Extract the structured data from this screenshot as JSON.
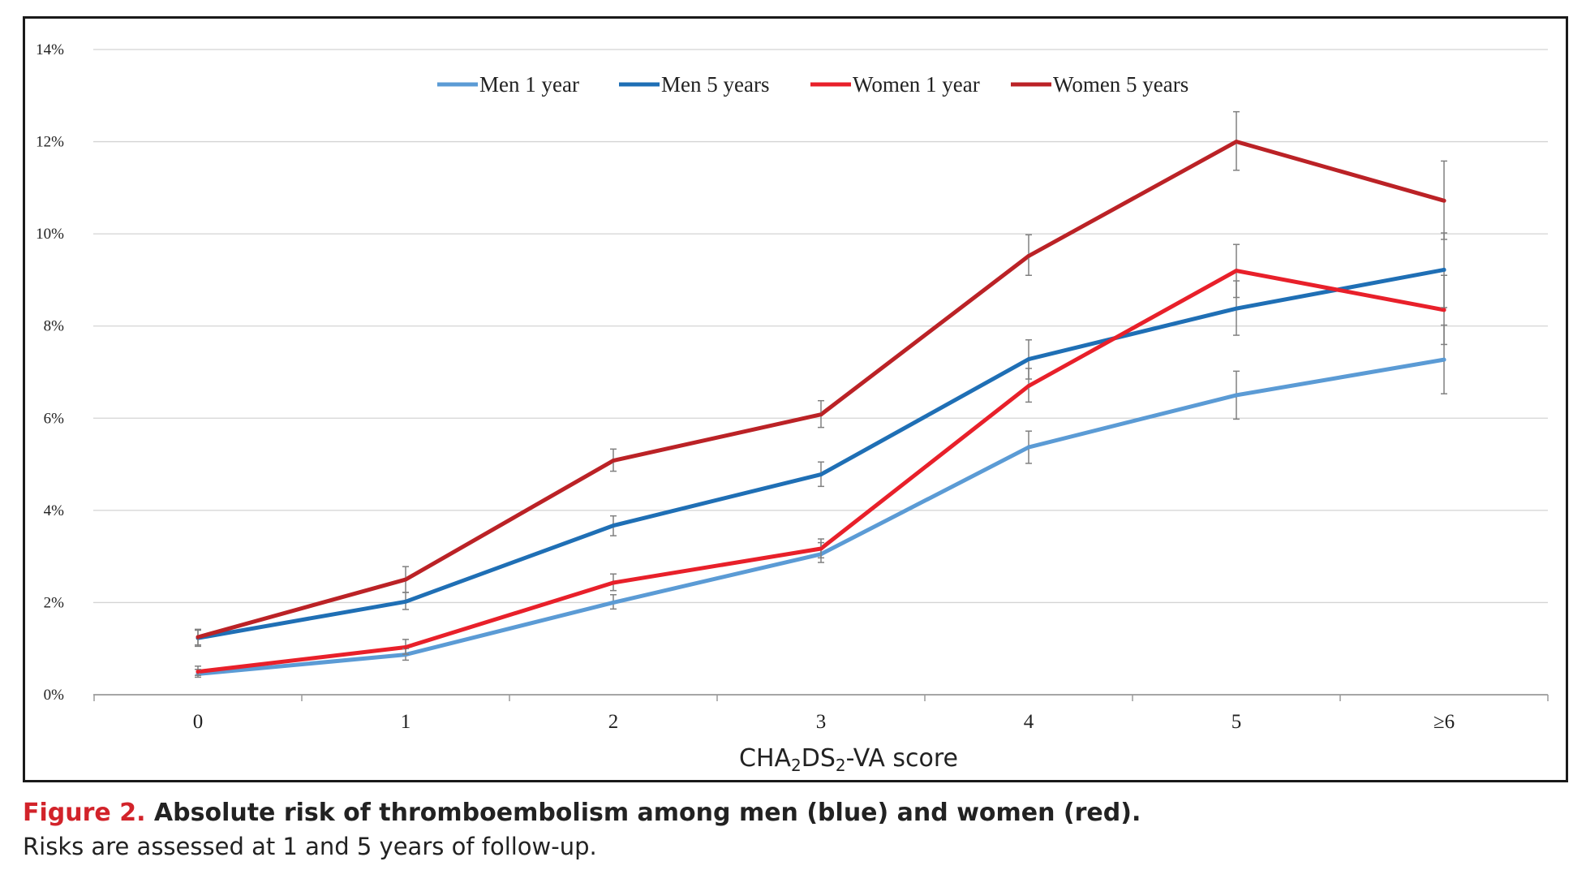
{
  "chart_data": {
    "type": "line",
    "xlabel": {
      "prefix": "CHA",
      "sub1": "2",
      "mid": "DS",
      "sub2": "2",
      "suffix": "-VA score"
    },
    "categories": [
      "0",
      "1",
      "2",
      "3",
      "4",
      "5",
      "≥6"
    ],
    "y_ticks": [
      "0%",
      "2%",
      "4%",
      "6%",
      "8%",
      "10%",
      "12%",
      "14%"
    ],
    "ylim": [
      0,
      14
    ],
    "y_unit": "%",
    "grid": "horizontal",
    "legend_position": "top-center",
    "series": [
      {
        "name": "Men 1 year",
        "color": "#5b9bd5",
        "values": [
          0.45,
          0.87,
          2.0,
          3.05,
          5.37,
          6.5,
          7.27
        ],
        "ci_low": [
          0.38,
          0.75,
          1.86,
          2.87,
          5.02,
          5.98,
          6.53
        ],
        "ci_high": [
          0.55,
          1.0,
          2.17,
          3.3,
          5.72,
          7.02,
          8.02
        ]
      },
      {
        "name": "Men 5 years",
        "color": "#1f6fb5",
        "values": [
          1.23,
          2.02,
          3.67,
          4.78,
          7.28,
          8.38,
          9.22
        ],
        "ci_low": [
          1.05,
          1.85,
          3.45,
          4.52,
          6.85,
          7.8,
          8.4
        ],
        "ci_high": [
          1.4,
          2.22,
          3.88,
          5.05,
          7.7,
          8.98,
          10.02
        ]
      },
      {
        "name": "Women 1 year",
        "color": "#e8202a",
        "values": [
          0.5,
          1.03,
          2.43,
          3.17,
          6.7,
          9.2,
          8.35
        ],
        "ci_low": [
          0.42,
          0.88,
          2.26,
          2.97,
          6.35,
          8.62,
          7.6
        ],
        "ci_high": [
          0.62,
          1.2,
          2.62,
          3.38,
          7.08,
          9.77,
          9.1
        ]
      },
      {
        "name": "Women 5 years",
        "color": "#bb2226",
        "values": [
          1.25,
          2.5,
          5.08,
          6.08,
          9.52,
          12.0,
          10.72
        ],
        "ci_low": [
          1.08,
          2.22,
          4.85,
          5.8,
          9.1,
          11.38,
          9.88
        ],
        "ci_high": [
          1.42,
          2.78,
          5.33,
          6.38,
          9.98,
          12.65,
          11.58
        ]
      }
    ]
  },
  "caption": {
    "figure_label": "Figure 2.",
    "title": " Absolute risk of thromboembolism among men (blue) and women (red).",
    "body": "Risks are assessed at 1 and 5 years of follow-up."
  }
}
